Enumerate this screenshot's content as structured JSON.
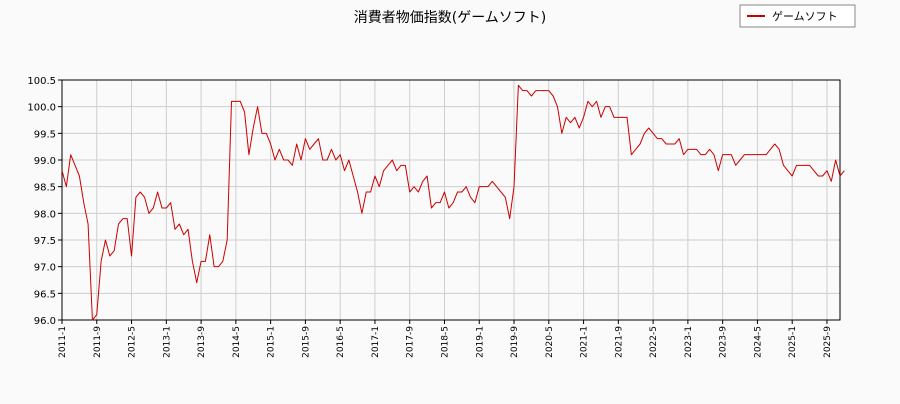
{
  "chart_data": {
    "type": "line",
    "title": "消費者物価指数(ゲームソフト)",
    "xlabel": "",
    "ylabel": "",
    "ylim": [
      96.0,
      100.5
    ],
    "yticks": [
      "96.0",
      "96.5",
      "97.0",
      "97.5",
      "98.0",
      "98.5",
      "99.0",
      "99.5",
      "100.0",
      "100.5"
    ],
    "xticks": [
      "2011-1",
      "2011-9",
      "2012-5",
      "2013-1",
      "2013-9",
      "2014-5",
      "2015-1",
      "2015-9",
      "2016-5",
      "2017-1",
      "2017-9",
      "2018-5",
      "2019-1",
      "2019-9",
      "2020-5",
      "2021-1",
      "2021-9",
      "2022-5",
      "2023-1",
      "2023-9",
      "2024-5",
      "2025-1",
      "2025-9"
    ],
    "x_start": "2011-1",
    "x_end": "2025-12",
    "grid": true,
    "legend_position": "top-right",
    "series": [
      {
        "name": "ゲームソフト",
        "color": "#cc0000",
        "values": [
          98.8,
          98.5,
          99.1,
          98.9,
          98.7,
          98.2,
          97.8,
          96.0,
          96.1,
          97.1,
          97.5,
          97.2,
          97.3,
          97.8,
          97.9,
          97.9,
          97.2,
          98.3,
          98.4,
          98.3,
          98.0,
          98.1,
          98.4,
          98.1,
          98.1,
          98.2,
          97.7,
          97.8,
          97.6,
          97.7,
          97.1,
          96.7,
          97.1,
          97.1,
          97.6,
          97.0,
          97.0,
          97.1,
          97.5,
          100.1,
          100.1,
          100.1,
          99.9,
          99.1,
          99.6,
          100.0,
          99.5,
          99.5,
          99.3,
          99.0,
          99.2,
          99.0,
          99.0,
          98.9,
          99.3,
          99.0,
          99.4,
          99.2,
          99.3,
          99.4,
          99.0,
          99.0,
          99.2,
          99.0,
          99.1,
          98.8,
          99.0,
          98.7,
          98.4,
          98.0,
          98.4,
          98.4,
          98.7,
          98.5,
          98.8,
          98.9,
          99.0,
          98.8,
          98.9,
          98.9,
          98.4,
          98.5,
          98.4,
          98.6,
          98.7,
          98.1,
          98.2,
          98.2,
          98.4,
          98.1,
          98.2,
          98.4,
          98.4,
          98.5,
          98.3,
          98.2,
          98.5,
          98.5,
          98.5,
          98.6,
          98.5,
          98.4,
          98.3,
          97.9,
          98.5,
          100.4,
          100.3,
          100.3,
          100.2,
          100.3,
          100.3,
          100.3,
          100.3,
          100.2,
          100.0,
          99.5,
          99.8,
          99.7,
          99.8,
          99.6,
          99.8,
          100.1,
          100.0,
          100.1,
          99.8,
          100.0,
          100.0,
          99.8,
          99.8,
          99.8,
          99.8,
          99.1,
          99.2,
          99.3,
          99.5,
          99.6,
          99.5,
          99.4,
          99.4,
          99.3,
          99.3,
          99.3,
          99.4,
          99.1,
          99.2,
          99.2,
          99.2,
          99.1,
          99.1,
          99.2,
          99.1,
          98.8,
          99.1,
          99.1,
          99.1,
          98.9,
          99.0,
          99.1,
          99.1,
          99.1,
          99.1,
          99.1,
          99.1,
          99.2,
          99.3,
          99.2,
          98.9,
          98.8,
          98.7,
          98.9,
          98.9,
          98.9,
          98.9,
          98.8,
          98.7,
          98.7,
          98.8,
          98.6,
          99.0,
          98.7,
          98.8
        ]
      }
    ]
  }
}
